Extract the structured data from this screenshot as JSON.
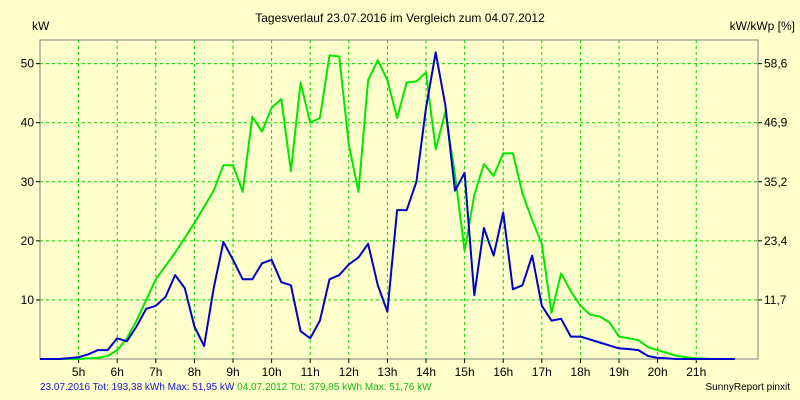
{
  "chart_data": {
    "type": "line",
    "title": "Tagesverlauf 23.07.2016 im Vergleich zum 04.07.2012",
    "ylabel_left": "kW",
    "ylabel_right": "kW/kWp [%]",
    "xlim": [
      4.0,
      22.6
    ],
    "ylim": [
      0,
      54
    ],
    "y_ticks_left": [
      10,
      20,
      30,
      40,
      50
    ],
    "y_ticks_right": [
      {
        "value": 10,
        "label": "11,7"
      },
      {
        "value": 20,
        "label": "23,4"
      },
      {
        "value": 30,
        "label": "35,2"
      },
      {
        "value": 40,
        "label": "46,9"
      },
      {
        "value": 50,
        "label": "58,6"
      }
    ],
    "x_ticks": [
      {
        "value": 5,
        "label": "5h"
      },
      {
        "value": 6,
        "label": "6h"
      },
      {
        "value": 7,
        "label": "7h"
      },
      {
        "value": 8,
        "label": "8h"
      },
      {
        "value": 9,
        "label": "9h"
      },
      {
        "value": 10,
        "label": "10h"
      },
      {
        "value": 11,
        "label": "11h"
      },
      {
        "value": 12,
        "label": "12h"
      },
      {
        "value": 13,
        "label": "13h"
      },
      {
        "value": 14,
        "label": "14h"
      },
      {
        "value": 15,
        "label": "15h"
      },
      {
        "value": 16,
        "label": "16h"
      },
      {
        "value": 17,
        "label": "17h"
      },
      {
        "value": 18,
        "label": "18h"
      },
      {
        "value": 19,
        "label": "19h"
      },
      {
        "value": 20,
        "label": "20h"
      },
      {
        "value": 21,
        "label": "21h"
      }
    ],
    "grid": true,
    "series": [
      {
        "name": "23.07.2016",
        "color": "#0000CC",
        "points": [
          [
            4.0,
            0
          ],
          [
            4.5,
            0
          ],
          [
            5.0,
            0.3
          ],
          [
            5.25,
            0.8
          ],
          [
            5.5,
            1.5
          ],
          [
            5.75,
            1.5
          ],
          [
            6.0,
            3.5
          ],
          [
            6.25,
            3.0
          ],
          [
            6.5,
            5.5
          ],
          [
            6.75,
            8.5
          ],
          [
            7.0,
            9.0
          ],
          [
            7.25,
            10.5
          ],
          [
            7.5,
            14.2
          ],
          [
            7.75,
            12.0
          ],
          [
            8.0,
            5.5
          ],
          [
            8.25,
            2.2
          ],
          [
            8.5,
            12.0
          ],
          [
            8.75,
            19.8
          ],
          [
            9.0,
            16.8
          ],
          [
            9.25,
            13.5
          ],
          [
            9.5,
            13.5
          ],
          [
            9.75,
            16.2
          ],
          [
            10.0,
            16.8
          ],
          [
            10.25,
            13.0
          ],
          [
            10.5,
            12.5
          ],
          [
            10.75,
            4.7
          ],
          [
            11.0,
            3.5
          ],
          [
            11.25,
            6.5
          ],
          [
            11.5,
            13.5
          ],
          [
            11.75,
            14.2
          ],
          [
            12.0,
            16.0
          ],
          [
            12.25,
            17.2
          ],
          [
            12.5,
            19.5
          ],
          [
            12.75,
            12.5
          ],
          [
            13.0,
            8.0
          ],
          [
            13.25,
            25.2
          ],
          [
            13.5,
            25.2
          ],
          [
            13.75,
            30.0
          ],
          [
            14.0,
            42.5
          ],
          [
            14.25,
            51.9
          ],
          [
            14.5,
            43.0
          ],
          [
            14.75,
            28.5
          ],
          [
            15.0,
            31.5
          ],
          [
            15.25,
            10.8
          ],
          [
            15.5,
            22.2
          ],
          [
            15.75,
            17.5
          ],
          [
            16.0,
            24.8
          ],
          [
            16.25,
            11.8
          ],
          [
            16.5,
            12.5
          ],
          [
            16.75,
            17.5
          ],
          [
            17.0,
            9.0
          ],
          [
            17.25,
            6.5
          ],
          [
            17.5,
            6.8
          ],
          [
            17.75,
            3.8
          ],
          [
            18.0,
            3.8
          ],
          [
            18.25,
            3.3
          ],
          [
            18.5,
            2.8
          ],
          [
            18.75,
            2.3
          ],
          [
            19.0,
            1.8
          ],
          [
            19.25,
            1.7
          ],
          [
            19.5,
            1.5
          ],
          [
            19.75,
            0.5
          ],
          [
            20.0,
            0.2
          ],
          [
            20.5,
            0
          ],
          [
            21.0,
            0
          ],
          [
            22.0,
            0
          ]
        ]
      },
      {
        "name": "04.07.2012",
        "color": "#00E800",
        "points": [
          [
            4.0,
            0
          ],
          [
            5.0,
            0
          ],
          [
            5.5,
            0.2
          ],
          [
            5.75,
            0.5
          ],
          [
            6.0,
            1.5
          ],
          [
            6.25,
            3.5
          ],
          [
            6.5,
            6.5
          ],
          [
            6.75,
            10.0
          ],
          [
            7.0,
            13.5
          ],
          [
            7.5,
            18.0
          ],
          [
            8.0,
            23.0
          ],
          [
            8.5,
            28.5
          ],
          [
            8.75,
            32.8
          ],
          [
            9.0,
            32.8
          ],
          [
            9.25,
            28.3
          ],
          [
            9.5,
            41.0
          ],
          [
            9.75,
            38.5
          ],
          [
            10.0,
            42.5
          ],
          [
            10.25,
            44.0
          ],
          [
            10.5,
            31.8
          ],
          [
            10.75,
            46.8
          ],
          [
            11.0,
            40.0
          ],
          [
            11.25,
            40.8
          ],
          [
            11.5,
            51.4
          ],
          [
            11.75,
            51.2
          ],
          [
            12.0,
            36.3
          ],
          [
            12.25,
            28.3
          ],
          [
            12.5,
            47.2
          ],
          [
            12.75,
            50.6
          ],
          [
            13.0,
            47.2
          ],
          [
            13.25,
            40.8
          ],
          [
            13.5,
            46.8
          ],
          [
            13.75,
            47.0
          ],
          [
            14.0,
            48.5
          ],
          [
            14.25,
            35.5
          ],
          [
            14.5,
            41.8
          ],
          [
            14.75,
            31.2
          ],
          [
            15.0,
            18.3
          ],
          [
            15.25,
            27.8
          ],
          [
            15.5,
            33.0
          ],
          [
            15.75,
            31.0
          ],
          [
            16.0,
            34.8
          ],
          [
            16.25,
            34.8
          ],
          [
            16.5,
            28.0
          ],
          [
            16.75,
            23.5
          ],
          [
            17.0,
            19.5
          ],
          [
            17.25,
            7.8
          ],
          [
            17.5,
            14.5
          ],
          [
            17.75,
            11.5
          ],
          [
            18.0,
            9.0
          ],
          [
            18.25,
            7.5
          ],
          [
            18.5,
            7.2
          ],
          [
            18.75,
            6.2
          ],
          [
            19.0,
            3.8
          ],
          [
            19.25,
            3.5
          ],
          [
            19.5,
            3.2
          ],
          [
            19.75,
            2.0
          ],
          [
            20.0,
            1.5
          ],
          [
            20.25,
            1.0
          ],
          [
            20.5,
            0.5
          ],
          [
            21.0,
            0.1
          ],
          [
            21.5,
            0
          ],
          [
            22.0,
            0
          ]
        ]
      }
    ]
  },
  "footer": {
    "series1_text": "23.07.2016 Tot: 193,38 kWh Max: 51,95 kW",
    "series2_text": "04.07.2012 Tot: 379,85 kWh Max: 51,76 kW",
    "credit": "SunnyReport pinxit"
  }
}
